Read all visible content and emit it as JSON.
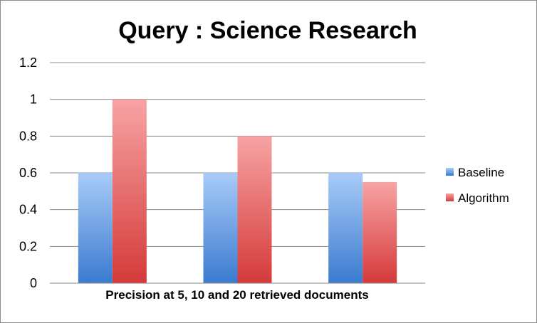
{
  "chart_data": {
    "type": "bar",
    "title": "Query : Science Research",
    "xlabel": "Precision at 5, 10 and 20 retrieved documents",
    "ylabel": "",
    "ylim": [
      0,
      1.2
    ],
    "yticks": [
      "0",
      "0.2",
      "0.4",
      "0.6",
      "0.8",
      "1",
      "1.2"
    ],
    "categories": [
      "",
      "",
      ""
    ],
    "series": [
      {
        "name": "Baseline",
        "values": [
          0.6,
          0.6,
          0.6
        ],
        "color": "#4a86d8"
      },
      {
        "name": "Algorithm",
        "values": [
          1.0,
          0.8,
          0.55
        ],
        "color": "#e05a5a"
      }
    ],
    "grid": true,
    "legend": "right"
  }
}
